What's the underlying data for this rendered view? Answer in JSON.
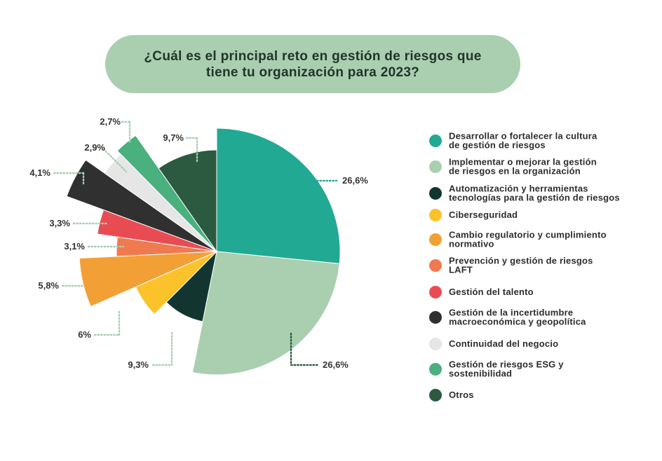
{
  "title": "¿Cuál es el principal reto en gestión de riesgos que tiene tu organización para 2023?",
  "chart_data": {
    "type": "pie",
    "title": "¿Cuál es el principal reto en gestión de riesgos que tiene tu organización para 2023?",
    "categories": [
      "Desarrollar o fortalecer la cultura de gestión de riesgos",
      "Implementar o mejorar la gestión de riesgos en la organización",
      "Automatización y herramientas tecnologías para la gestión de riesgos",
      "Ciberseguridad",
      "Cambio regulatorio y cumplimiento normativo",
      "Prevención y gestión de riesgos LAFT",
      "Gestión del talento",
      "Gestión de la incertidumbre macroeconómica y geopolítica",
      "Continuidad del negocio",
      "Gestión de riesgos ESG y sostenibilidad",
      "Otros"
    ],
    "values": [
      26.6,
      26.6,
      9.3,
      6,
      5.8,
      3.1,
      3.3,
      4.1,
      2.9,
      2.7,
      9.7
    ],
    "labels": [
      "26,6%",
      "26,6%",
      "9,3%",
      "6%",
      "5,8%",
      "3,1%",
      "3,3%",
      "4,1%",
      "2,9%",
      "2,7%",
      "9,7%"
    ],
    "colors": [
      "#22a994",
      "#a9cfb0",
      "#12362f",
      "#fbc22a",
      "#f2a036",
      "#f07a50",
      "#e84c52",
      "#303030",
      "#e6e6e6",
      "#49b07e",
      "#2b5a40"
    ],
    "legend_position": "right"
  },
  "legend": [
    "Desarrollar o fortalecer la cultura\nde gestión de riesgos",
    "Implementar o mejorar la gestión\nde riesgos en la organización",
    "Automatización y herramientas\ntecnologías para la gestión de riesgos",
    "Ciberseguridad",
    "Cambio regulatorio y cumplimiento\nnormativo",
    "Prevención y gestión de riesgos\nLAFT",
    "Gestión del talento",
    "Gestión de la incertidumbre\nmacroeconómica y geopolítica",
    "Continuidad del negocio",
    "Gestión de riesgos ESG y\nsostenibilidad",
    "Otros"
  ]
}
